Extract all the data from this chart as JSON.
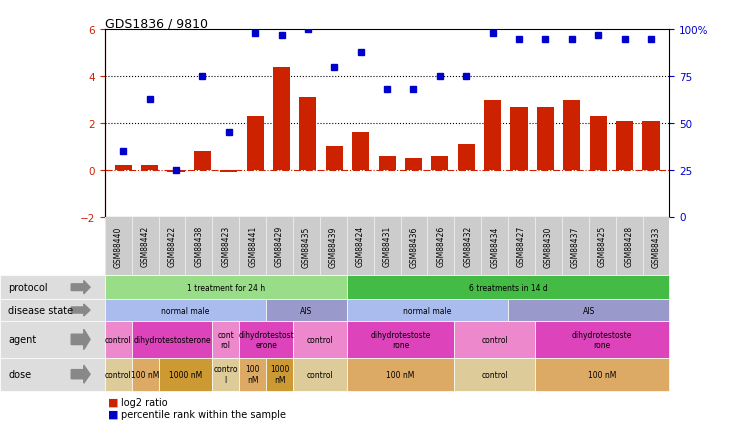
{
  "title": "GDS1836 / 9810",
  "samples": [
    "GSM88440",
    "GSM88442",
    "GSM88422",
    "GSM88438",
    "GSM88423",
    "GSM88441",
    "GSM88429",
    "GSM88435",
    "GSM88439",
    "GSM88424",
    "GSM88431",
    "GSM88436",
    "GSM88426",
    "GSM88432",
    "GSM88434",
    "GSM88427",
    "GSM88430",
    "GSM88437",
    "GSM88425",
    "GSM88428",
    "GSM88433"
  ],
  "log2_ratio": [
    0.2,
    0.2,
    -0.1,
    0.8,
    -0.1,
    2.3,
    4.4,
    3.1,
    1.0,
    1.6,
    0.6,
    0.5,
    0.6,
    1.1,
    3.0,
    2.7,
    2.7,
    3.0,
    2.3,
    2.1,
    2.1
  ],
  "percentile": [
    35,
    63,
    25,
    75,
    45,
    98,
    97,
    100,
    80,
    88,
    68,
    68,
    75,
    75,
    98,
    95,
    95,
    95,
    97,
    95,
    95
  ],
  "bar_color": "#cc2200",
  "dot_color": "#0000cc",
  "dotline1": 2.0,
  "dotline2": 4.0,
  "ylim_left": [
    -2,
    6
  ],
  "ylim_right": [
    0,
    100
  ],
  "yticks_left": [
    -2,
    0,
    2,
    4,
    6
  ],
  "yticks_right": [
    0,
    25,
    50,
    75,
    100
  ],
  "protocol_groups": [
    {
      "label": "1 treatment for 24 h",
      "start": 0,
      "end": 9,
      "color": "#99dd88"
    },
    {
      "label": "6 treatments in 14 d",
      "start": 9,
      "end": 21,
      "color": "#44bb44"
    }
  ],
  "disease_groups": [
    {
      "label": "normal male",
      "start": 0,
      "end": 6,
      "color": "#aabbee"
    },
    {
      "label": "AIS",
      "start": 6,
      "end": 9,
      "color": "#9999cc"
    },
    {
      "label": "normal male",
      "start": 9,
      "end": 15,
      "color": "#aabbee"
    },
    {
      "label": "AIS",
      "start": 15,
      "end": 21,
      "color": "#9999cc"
    }
  ],
  "agent_groups": [
    {
      "label": "control",
      "start": 0,
      "end": 1,
      "color": "#ee88cc"
    },
    {
      "label": "dihydrotestosterone",
      "start": 1,
      "end": 4,
      "color": "#dd44bb"
    },
    {
      "label": "cont\nrol",
      "start": 4,
      "end": 5,
      "color": "#ee88cc"
    },
    {
      "label": "dihydrotestost\nerone",
      "start": 5,
      "end": 7,
      "color": "#dd44bb"
    },
    {
      "label": "control",
      "start": 7,
      "end": 9,
      "color": "#ee88cc"
    },
    {
      "label": "dihydrotestoste\nrone",
      "start": 9,
      "end": 13,
      "color": "#dd44bb"
    },
    {
      "label": "control",
      "start": 13,
      "end": 16,
      "color": "#ee88cc"
    },
    {
      "label": "dihydrotestoste\nrone",
      "start": 16,
      "end": 21,
      "color": "#dd44bb"
    }
  ],
  "dose_groups": [
    {
      "label": "control",
      "start": 0,
      "end": 1,
      "color": "#ddcc99"
    },
    {
      "label": "100 nM",
      "start": 1,
      "end": 2,
      "color": "#ddaa66"
    },
    {
      "label": "1000 nM",
      "start": 2,
      "end": 4,
      "color": "#cc9933"
    },
    {
      "label": "contro\nl",
      "start": 4,
      "end": 5,
      "color": "#ddcc99"
    },
    {
      "label": "100\nnM",
      "start": 5,
      "end": 6,
      "color": "#ddaa66"
    },
    {
      "label": "1000\nnM",
      "start": 6,
      "end": 7,
      "color": "#cc9933"
    },
    {
      "label": "control",
      "start": 7,
      "end": 9,
      "color": "#ddcc99"
    },
    {
      "label": "100 nM",
      "start": 9,
      "end": 13,
      "color": "#ddaa66"
    },
    {
      "label": "control",
      "start": 13,
      "end": 16,
      "color": "#ddcc99"
    },
    {
      "label": "100 nM",
      "start": 16,
      "end": 21,
      "color": "#ddaa66"
    }
  ],
  "row_labels": [
    "protocol",
    "disease state",
    "agent",
    "dose"
  ],
  "background_color": "#ffffff"
}
